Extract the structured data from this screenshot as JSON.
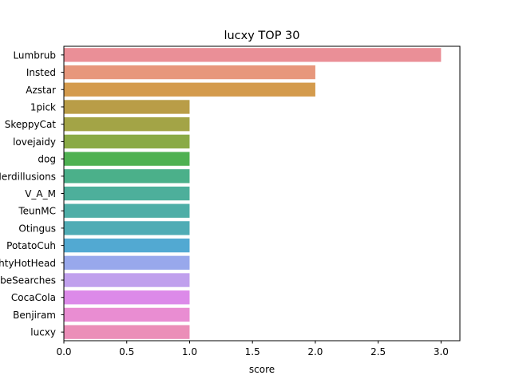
{
  "chart_data": {
    "type": "bar",
    "orientation": "horizontal",
    "title": "lucxy TOP 30",
    "xlabel": "score",
    "ylabel": "",
    "xlim": [
      0,
      3.15
    ],
    "xticks": [
      "0.0",
      "0.5",
      "1.0",
      "1.5",
      "2.0",
      "2.5",
      "3.0"
    ],
    "grid": false,
    "categories": [
      "Lumbrub",
      "Insted",
      "Azstar",
      "1pick",
      "SkeppyCat",
      "lovejaidy",
      "dog",
      "Nerdillusions",
      "V_A_M",
      "TeunMC",
      "Otingus",
      "PotatoCuh",
      "MightyHotHead",
      "YouTubeSearches",
      "CocaCola",
      "Benjiram",
      "lucxy"
    ],
    "values": [
      3,
      2,
      2,
      1,
      1,
      1,
      1,
      1,
      1,
      1,
      1,
      1,
      1,
      1,
      1,
      1,
      1
    ],
    "colors": [
      "#ea8f97",
      "#e7977c",
      "#d49b4d",
      "#b99d47",
      "#a3a446",
      "#8aaa45",
      "#4fb152",
      "#4bb08a",
      "#4daf9b",
      "#4eaea7",
      "#50acb5",
      "#52a9d2",
      "#98a8ec",
      "#c0a0ed",
      "#dc8ae9",
      "#e98dd2",
      "#eb8eb8"
    ]
  }
}
